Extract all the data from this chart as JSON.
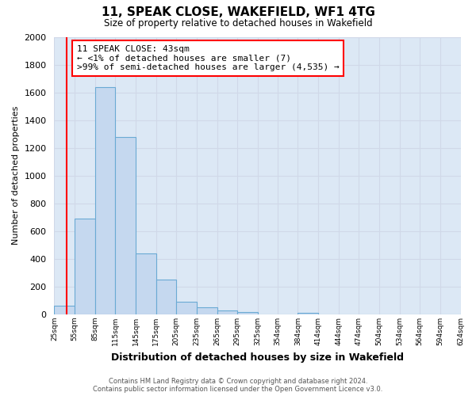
{
  "title": "11, SPEAK CLOSE, WAKEFIELD, WF1 4TG",
  "subtitle": "Size of property relative to detached houses in Wakefield",
  "xlabel": "Distribution of detached houses by size in Wakefield",
  "ylabel": "Number of detached properties",
  "annotation_line1": "11 SPEAK CLOSE: 43sqm",
  "annotation_line2": "← <1% of detached houses are smaller (7)",
  "annotation_line3": ">99% of semi-detached houses are larger (4,535) →",
  "bar_left_edges": [
    25,
    55,
    85,
    115,
    145,
    175,
    205,
    235,
    265,
    295,
    325,
    354,
    384,
    414,
    444,
    474,
    504,
    534,
    564,
    594
  ],
  "bar_widths": [
    30,
    30,
    30,
    30,
    30,
    30,
    30,
    30,
    30,
    30,
    29,
    30,
    30,
    30,
    30,
    30,
    30,
    30,
    30,
    30
  ],
  "bar_heights": [
    65,
    690,
    1635,
    1280,
    440,
    250,
    90,
    50,
    30,
    20,
    0,
    0,
    10,
    0,
    0,
    0,
    0,
    0,
    0,
    0
  ],
  "bar_color": "#c5d8ef",
  "bar_edge_color": "#6aaad4",
  "tick_labels": [
    "25sqm",
    "55sqm",
    "85sqm",
    "115sqm",
    "145sqm",
    "175sqm",
    "205sqm",
    "235sqm",
    "265sqm",
    "295sqm",
    "325sqm",
    "354sqm",
    "384sqm",
    "414sqm",
    "444sqm",
    "474sqm",
    "504sqm",
    "534sqm",
    "564sqm",
    "594sqm",
    "624sqm"
  ],
  "ylim": [
    0,
    2000
  ],
  "yticks": [
    0,
    200,
    400,
    600,
    800,
    1000,
    1200,
    1400,
    1600,
    1800,
    2000
  ],
  "red_line_x": 43,
  "grid_color": "#d0d8e8",
  "plot_bg_color": "#dce8f5",
  "fig_bg_color": "#ffffff",
  "footer_line1": "Contains HM Land Registry data © Crown copyright and database right 2024.",
  "footer_line2": "Contains public sector information licensed under the Open Government Licence v3.0."
}
